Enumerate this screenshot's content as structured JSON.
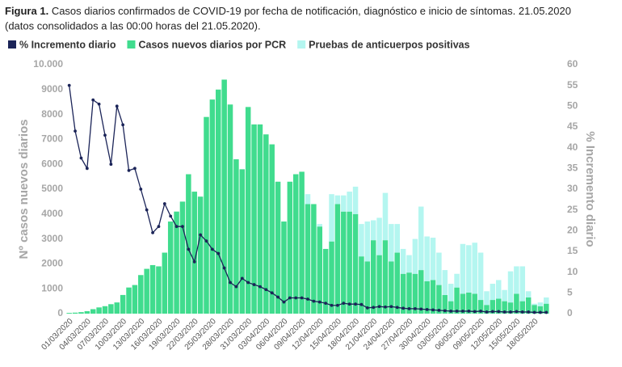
{
  "chart_data": {
    "type": "bar",
    "stacked": true,
    "figure_label": "Figura 1.",
    "title": "Casos diarios confirmados de COVID-19 por fecha de notificación, diagnóstico e inicio de síntomas. 21.05.2020",
    "subtitle": "(datos consolidados a las 00:00 horas del 21.05.2020).",
    "y_label": "Nº casos nuevos diarios",
    "y2_label": "% Incremento diario",
    "categories": [
      "01/03/2020",
      null,
      null,
      "04/03/2020",
      null,
      null,
      "07/03/2020",
      null,
      null,
      "10/03/2020",
      null,
      null,
      "13/03/2020",
      null,
      null,
      "16/03/2020",
      null,
      null,
      "19/03/2020",
      null,
      null,
      "22/03/2020",
      null,
      null,
      "25/03/2020",
      null,
      null,
      "28/03/2020",
      null,
      null,
      "31/03/2020",
      null,
      null,
      "03/04/2020",
      null,
      null,
      "06/04/2020",
      null,
      null,
      "09/04/2020",
      null,
      null,
      "12/04/2020",
      null,
      null,
      "15/04/2020",
      null,
      null,
      "18/04/2020",
      null,
      null,
      "21/04/2020",
      null,
      null,
      "24/04/2020",
      null,
      null,
      "27/04/2020",
      null,
      null,
      "30/04/2020",
      null,
      null,
      "03/05/2020",
      null,
      null,
      "06/05/2020",
      null,
      null,
      "09/05/2020",
      null,
      null,
      "12/05/2020",
      null,
      null,
      "15/05/2020",
      null,
      null,
      "18/05/2020",
      null,
      null
    ],
    "series": [
      {
        "name": "% Incremento diario",
        "color": "#1b2458",
        "type": "line",
        "axis": "y2",
        "values": [
          55,
          44,
          37.5,
          35,
          51.5,
          50.5,
          43,
          36,
          50,
          45.5,
          34.5,
          35,
          30,
          25,
          19.5,
          21,
          26.5,
          23.5,
          21,
          21,
          15.5,
          12.5,
          19,
          17.5,
          15.5,
          14.5,
          11,
          7.5,
          6.5,
          8.5,
          7.5,
          7,
          6.5,
          5.8,
          5,
          4,
          2.8,
          3.8,
          3.8,
          3.8,
          3.5,
          3,
          2.8,
          2.5,
          2,
          2,
          2.5,
          2.3,
          2.3,
          2.2,
          1.4,
          1.5,
          1.7,
          1.6,
          1.7,
          1.5,
          1.3,
          1.2,
          1.2,
          1.1,
          1,
          0.9,
          0.8,
          0.7,
          0.6,
          0.6,
          0.6,
          0.6,
          0.5,
          0.6,
          0.4,
          0.5,
          0.5,
          0.4,
          0.4,
          0.5,
          0.4,
          0.4,
          0.3,
          0.3,
          0.3
        ]
      },
      {
        "name": "Casos nuevos diarios por PCR",
        "color": "#40dc8e",
        "values": [
          30,
          40,
          60,
          100,
          180,
          250,
          300,
          380,
          450,
          750,
          1050,
          1150,
          1550,
          1800,
          1950,
          1900,
          2450,
          3700,
          4100,
          4500,
          5600,
          4900,
          4700,
          7900,
          8600,
          9000,
          9400,
          8400,
          6200,
          5800,
          8300,
          7600,
          7600,
          7200,
          6800,
          5300,
          3700,
          5300,
          5600,
          5700,
          4400,
          4400,
          3500,
          2600,
          2900,
          4400,
          4100,
          4100,
          4000,
          2300,
          2100,
          2950,
          2350,
          2950,
          2100,
          2450,
          1600,
          1650,
          1600,
          1750,
          1300,
          1350,
          1150,
          750,
          500,
          1050,
          800,
          850,
          800,
          550,
          350,
          550,
          600,
          500,
          450,
          800,
          500,
          650,
          350,
          300,
          400
        ]
      },
      {
        "name": "Pruebas de anticuerpos positivas",
        "color": "#b4f6f0",
        "values": [
          0,
          0,
          0,
          0,
          0,
          0,
          0,
          0,
          0,
          0,
          0,
          0,
          0,
          0,
          0,
          0,
          0,
          0,
          0,
          0,
          0,
          0,
          0,
          0,
          0,
          0,
          0,
          0,
          0,
          0,
          0,
          0,
          0,
          0,
          0,
          0,
          0,
          0,
          0,
          0,
          400,
          0,
          100,
          0,
          1900,
          350,
          650,
          800,
          1100,
          1300,
          1600,
          800,
          1500,
          1900,
          1500,
          1150,
          1000,
          700,
          1400,
          2550,
          1800,
          1700,
          1300,
          1000,
          700,
          550,
          2000,
          1900,
          2050,
          1900,
          550,
          650,
          750,
          450,
          1250,
          1100,
          1400,
          250,
          50,
          150,
          250
        ]
      }
    ],
    "ylim": [
      0,
      10000
    ],
    "yticks": [
      0,
      1000,
      2000,
      3000,
      4000,
      5000,
      6000,
      7000,
      8000,
      9000,
      {
        "value": 10000,
        "label": "10.000"
      }
    ],
    "y2lim": [
      0,
      60
    ],
    "y2ticks": [
      0,
      5,
      10,
      15,
      20,
      25,
      30,
      35,
      40,
      45,
      50,
      55,
      60
    ],
    "grid": false,
    "legend": "top-left"
  }
}
